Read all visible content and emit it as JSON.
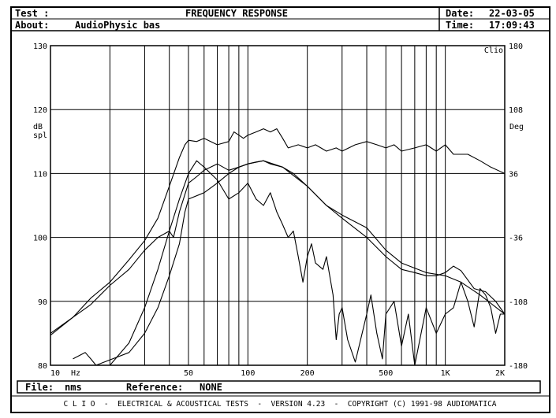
{
  "header": {
    "test_label": "Test :",
    "title": "FREQUENCY RESPONSE",
    "about_label": "About:",
    "about_value": "AudioPhysic bas",
    "date_label": "Date:",
    "date_value": "22-03-05",
    "time_label": "Time:",
    "time_value": "17:09:43"
  },
  "footer": {
    "file_label": "File:",
    "file_value": "nms",
    "reference_label": "Reference:",
    "reference_value": "NONE",
    "banner": "C L I O  -  ELECTRICAL & ACOUSTICAL TESTS  -  VERSION 4.23  -  COPYRIGHT (C) 1991-98 AUDIOMATICA"
  },
  "chart_data": {
    "type": "line",
    "title": "FREQUENCY RESPONSE",
    "corner_label": "Clio",
    "x_unit_label": "Hz",
    "left_axis_label": [
      "dB",
      "spl"
    ],
    "right_axis_label": "Deg",
    "xscale": "log",
    "xlim": [
      10,
      2000
    ],
    "ylim": [
      80,
      130
    ],
    "y2lim": [
      -180,
      180
    ],
    "grid": true,
    "x_ticks": [
      {
        "value": 10,
        "label": "10"
      },
      {
        "value": 50,
        "label": "50"
      },
      {
        "value": 100,
        "label": "100"
      },
      {
        "value": 200,
        "label": "200"
      },
      {
        "value": 500,
        "label": "500"
      },
      {
        "value": 1000,
        "label": "1K"
      },
      {
        "value": 2000,
        "label": "2K"
      }
    ],
    "y_ticks": [
      {
        "value": 80,
        "label": "80"
      },
      {
        "value": 90,
        "label": "90"
      },
      {
        "value": 100,
        "label": "100"
      },
      {
        "value": 110,
        "label": "110"
      },
      {
        "value": 120,
        "label": "120"
      },
      {
        "value": 130,
        "label": "130"
      }
    ],
    "y2_ticks": [
      {
        "value": -180,
        "label": "-180"
      },
      {
        "value": -108,
        "label": "-108"
      },
      {
        "value": -36,
        "label": "-36"
      },
      {
        "value": 36,
        "label": "36"
      },
      {
        "value": 108,
        "label": "108"
      },
      {
        "value": 180,
        "label": "180"
      }
    ],
    "series": [
      {
        "values": [
          [
            10,
            84.7
          ],
          [
            13,
            87.5
          ],
          [
            16,
            90.5
          ],
          [
            20,
            93
          ],
          [
            25,
            96.5
          ],
          [
            30,
            99.5
          ],
          [
            35,
            103
          ],
          [
            40,
            108
          ],
          [
            45,
            112.5
          ],
          [
            48,
            114.5
          ],
          [
            50,
            115.2
          ],
          [
            55,
            115
          ],
          [
            60,
            115.5
          ],
          [
            70,
            114.5
          ],
          [
            80,
            115
          ],
          [
            85,
            116.5
          ],
          [
            90,
            116
          ],
          [
            95,
            115.5
          ],
          [
            100,
            116
          ],
          [
            110,
            116.5
          ],
          [
            120,
            117
          ],
          [
            130,
            116.5
          ],
          [
            140,
            117
          ],
          [
            150,
            115.5
          ],
          [
            160,
            114
          ],
          [
            180,
            114.5
          ],
          [
            200,
            114
          ],
          [
            220,
            114.5
          ],
          [
            250,
            113.5
          ],
          [
            280,
            114
          ],
          [
            300,
            113.5
          ],
          [
            350,
            114.5
          ],
          [
            400,
            115
          ],
          [
            450,
            114.5
          ],
          [
            500,
            114
          ],
          [
            550,
            114.5
          ],
          [
            600,
            113.5
          ],
          [
            700,
            114
          ],
          [
            800,
            114.5
          ],
          [
            900,
            113.5
          ],
          [
            1000,
            114.5
          ],
          [
            1100,
            113
          ],
          [
            1300,
            113
          ],
          [
            1500,
            112
          ],
          [
            1700,
            111
          ],
          [
            2000,
            110
          ]
        ]
      },
      {
        "values": [
          [
            10,
            85
          ],
          [
            13,
            87.5
          ],
          [
            16,
            89.5
          ],
          [
            20,
            92.5
          ],
          [
            25,
            95
          ],
          [
            30,
            98
          ],
          [
            35,
            100
          ],
          [
            40,
            101
          ],
          [
            42,
            100
          ],
          [
            45,
            104
          ],
          [
            50,
            108.5
          ],
          [
            55,
            109.5
          ],
          [
            60,
            110.5
          ],
          [
            70,
            111.5
          ],
          [
            80,
            110.5
          ],
          [
            90,
            111
          ],
          [
            100,
            111.5
          ],
          [
            120,
            112
          ],
          [
            150,
            111
          ],
          [
            200,
            108
          ],
          [
            250,
            105
          ],
          [
            300,
            103.5
          ],
          [
            400,
            101.5
          ],
          [
            500,
            98
          ],
          [
            600,
            96
          ],
          [
            800,
            94.5
          ],
          [
            1000,
            94
          ],
          [
            1200,
            93
          ],
          [
            1500,
            91
          ],
          [
            2000,
            88
          ]
        ]
      },
      {
        "values": [
          [
            13,
            81
          ],
          [
            15,
            82
          ],
          [
            16,
            81
          ],
          [
            17,
            80
          ],
          [
            25,
            82
          ],
          [
            30,
            85
          ],
          [
            35,
            89
          ],
          [
            40,
            94
          ],
          [
            45,
            99
          ],
          [
            48,
            104
          ],
          [
            50,
            106
          ],
          [
            60,
            107
          ],
          [
            70,
            108.5
          ],
          [
            80,
            110
          ],
          [
            90,
            111
          ],
          [
            100,
            111.5
          ],
          [
            110,
            111.8
          ],
          [
            120,
            112
          ],
          [
            130,
            111.5
          ],
          [
            150,
            111
          ],
          [
            170,
            110
          ],
          [
            200,
            108
          ],
          [
            250,
            105
          ],
          [
            300,
            103
          ],
          [
            400,
            100
          ],
          [
            500,
            97
          ],
          [
            600,
            95
          ],
          [
            700,
            94.5
          ],
          [
            800,
            94
          ],
          [
            900,
            94
          ],
          [
            1000,
            94.5
          ],
          [
            1100,
            95.5
          ],
          [
            1200,
            94.8
          ],
          [
            1400,
            92
          ],
          [
            1600,
            91.5
          ],
          [
            1800,
            90
          ],
          [
            2000,
            88
          ]
        ]
      },
      {
        "values": [
          [
            20,
            79
          ],
          [
            25,
            83.5
          ],
          [
            30,
            89
          ],
          [
            35,
            95
          ],
          [
            40,
            101
          ],
          [
            45,
            106
          ],
          [
            50,
            110
          ],
          [
            55,
            112
          ],
          [
            60,
            111
          ],
          [
            70,
            109
          ],
          [
            80,
            106
          ],
          [
            90,
            107
          ],
          [
            100,
            108.5
          ],
          [
            110,
            106
          ],
          [
            120,
            105
          ],
          [
            130,
            107
          ],
          [
            140,
            104
          ],
          [
            150,
            102
          ],
          [
            160,
            100
          ],
          [
            170,
            101
          ],
          [
            180,
            97
          ],
          [
            190,
            93
          ],
          [
            200,
            97
          ],
          [
            210,
            99
          ],
          [
            220,
            96
          ],
          [
            240,
            95
          ],
          [
            250,
            97
          ],
          [
            270,
            91
          ],
          [
            280,
            84
          ],
          [
            290,
            88
          ],
          [
            300,
            89
          ],
          [
            320,
            84
          ],
          [
            350,
            80.5
          ],
          [
            400,
            88
          ],
          [
            420,
            91
          ],
          [
            450,
            85
          ],
          [
            480,
            81
          ],
          [
            500,
            88
          ],
          [
            550,
            90
          ],
          [
            600,
            83
          ],
          [
            650,
            88
          ],
          [
            700,
            80
          ],
          [
            800,
            89
          ],
          [
            900,
            85
          ],
          [
            1000,
            88
          ],
          [
            1100,
            89
          ],
          [
            1200,
            93
          ],
          [
            1300,
            90
          ],
          [
            1400,
            86
          ],
          [
            1500,
            92
          ],
          [
            1600,
            91
          ],
          [
            1700,
            89
          ],
          [
            1800,
            85
          ],
          [
            1900,
            88
          ],
          [
            2000,
            88
          ]
        ]
      }
    ]
  }
}
